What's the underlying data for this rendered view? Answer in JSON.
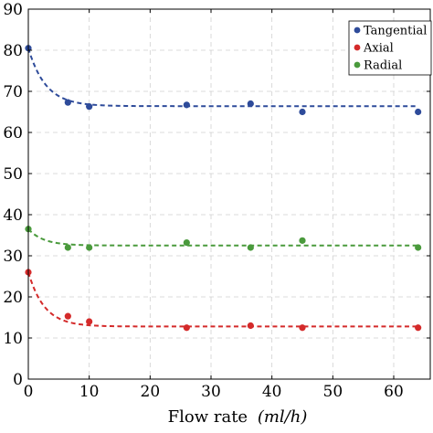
{
  "chart_data": {
    "type": "scatter",
    "xlabel": "Flow rate",
    "xlabel_unit": "(ml/h)",
    "ylabel": "",
    "xlim": [
      0,
      66
    ],
    "ylim": [
      0,
      90
    ],
    "x_ticks": [
      "0",
      "10",
      "20",
      "30",
      "40",
      "50",
      "60"
    ],
    "y_ticks": [
      "0",
      "10",
      "20",
      "30",
      "40",
      "50",
      "60",
      "70",
      "80",
      "90"
    ],
    "x_tick_values": [
      0,
      10,
      20,
      30,
      40,
      50,
      60
    ],
    "y_tick_values": [
      0,
      10,
      20,
      30,
      40,
      50,
      60,
      70,
      80,
      90
    ],
    "grid": true,
    "legend_position": "top-right",
    "series": [
      {
        "name": "Tangential",
        "color": "#2e4b9a",
        "x": [
          0,
          6.5,
          10,
          26,
          36.5,
          45,
          64
        ],
        "y": [
          80.5,
          67.3,
          66.3,
          66.7,
          67.0,
          65.0,
          65.0
        ],
        "fit": {
          "asymptote": 66.4,
          "amplitude": 14.1,
          "rate": 0.35
        }
      },
      {
        "name": "Axial",
        "color": "#d42a2a",
        "x": [
          0,
          6.5,
          10,
          26,
          36.5,
          45,
          64
        ],
        "y": [
          26.0,
          15.3,
          14.0,
          12.5,
          13.0,
          12.5,
          12.5
        ],
        "fit": {
          "asymptote": 12.8,
          "amplitude": 13.2,
          "rate": 0.38
        }
      },
      {
        "name": "Radial",
        "color": "#4a9a3c",
        "x": [
          0,
          6.5,
          10,
          26,
          36.5,
          45,
          64
        ],
        "y": [
          36.5,
          32.0,
          32.0,
          33.2,
          32.0,
          33.7,
          32.0
        ],
        "fit": {
          "asymptote": 32.5,
          "amplitude": 4.0,
          "rate": 0.4
        }
      }
    ]
  }
}
